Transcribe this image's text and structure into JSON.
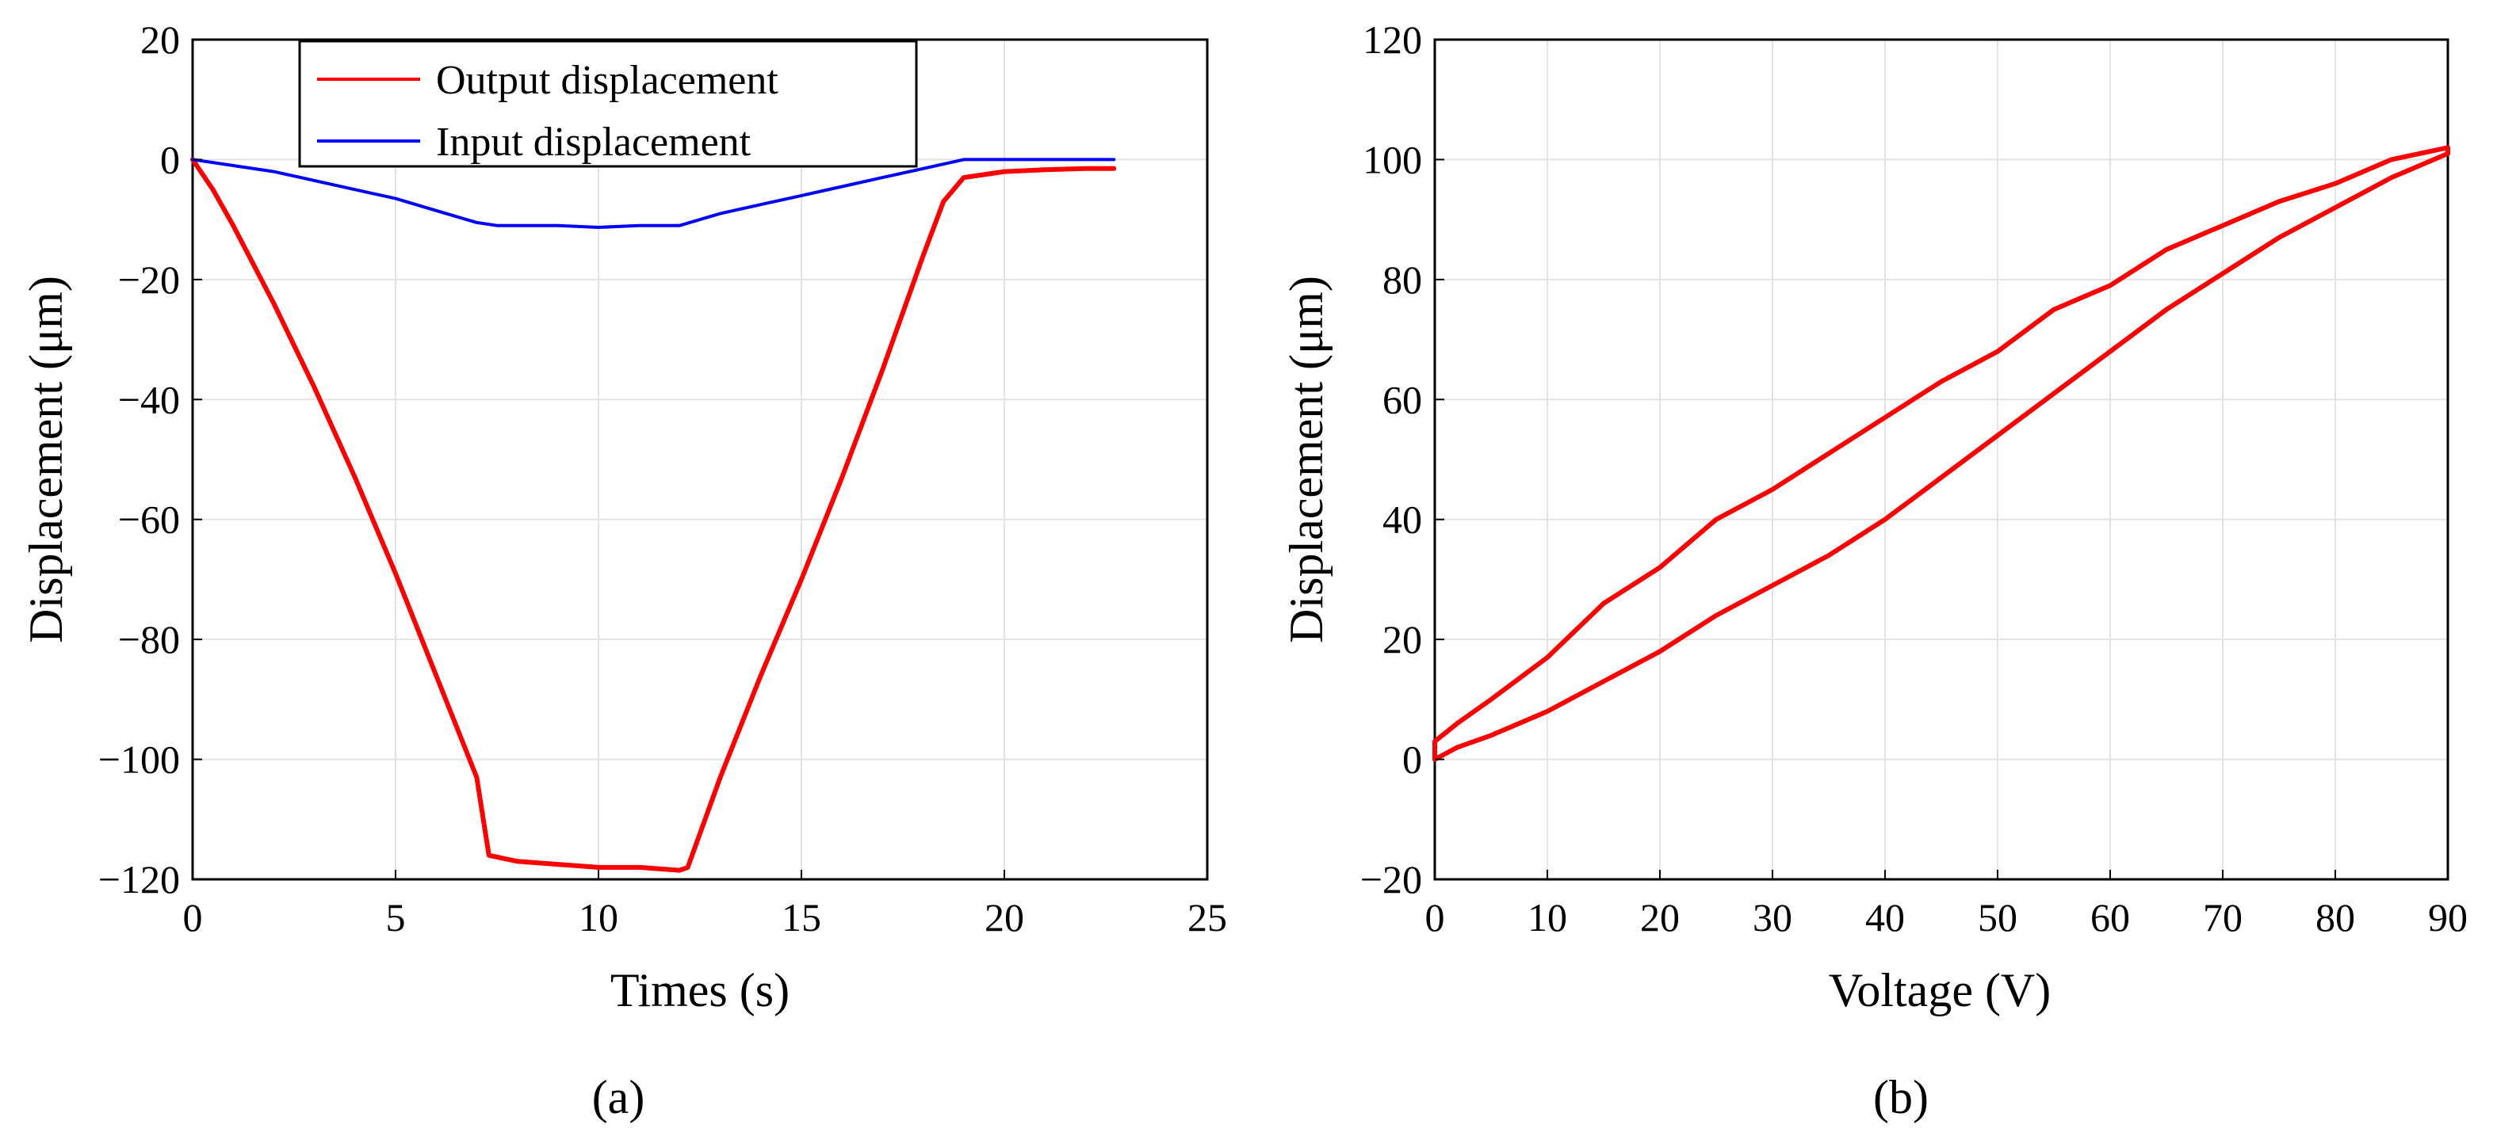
{
  "chart_data": [
    {
      "type": "line",
      "panel_label": "(a)",
      "xlabel": "Times (s)",
      "ylabel": "Displacement (μm)",
      "xlim": [
        0,
        25
      ],
      "ylim": [
        -120,
        20
      ],
      "xticks": [
        0,
        5,
        10,
        15,
        20,
        25
      ],
      "yticks": [
        20,
        0,
        -20,
        -40,
        -60,
        -80,
        -100,
        -120
      ],
      "grid": true,
      "legend_position": "top-left",
      "series": [
        {
          "name": "Output displacement",
          "color": "#ff0000",
          "x": [
            0,
            0.5,
            1,
            2,
            3,
            4,
            5,
            6,
            7,
            7.3,
            8,
            9,
            10,
            11,
            12,
            12.2,
            13,
            14,
            15,
            16,
            17,
            18,
            18.5,
            19,
            19.5,
            20,
            21,
            22,
            22.7
          ],
          "y": [
            0,
            -5,
            -11,
            -24,
            -38,
            -53,
            -69,
            -86,
            -103,
            -116,
            -117,
            -117.5,
            -118,
            -118,
            -118.5,
            -118,
            -103,
            -86,
            -70,
            -53,
            -35,
            -16,
            -7,
            -3,
            -2.5,
            -2,
            -1.7,
            -1.5,
            -1.5
          ]
        },
        {
          "name": "Input displacement",
          "color": "#0000ff",
          "x": [
            0,
            1,
            2,
            3,
            4,
            5,
            6,
            7,
            7.5,
            8,
            9,
            10,
            11,
            12,
            13,
            14,
            15,
            16,
            17,
            18,
            19,
            19.5,
            20,
            21,
            22,
            22.7
          ],
          "y": [
            0,
            -1,
            -2,
            -3.5,
            -5,
            -6.5,
            -8.5,
            -10.5,
            -11,
            -11,
            -11,
            -11.3,
            -11,
            -11,
            -9,
            -7.5,
            -6,
            -4.5,
            -3,
            -1.5,
            0,
            0,
            0,
            0,
            0,
            0
          ]
        }
      ]
    },
    {
      "type": "line",
      "panel_label": "(b)",
      "xlabel": "Voltage (V)",
      "ylabel": "Displacement (μm)",
      "xlim": [
        0,
        90
      ],
      "ylim": [
        -20,
        120
      ],
      "xticks": [
        0,
        10,
        20,
        30,
        40,
        50,
        60,
        70,
        80,
        90
      ],
      "yticks": [
        120,
        100,
        80,
        60,
        40,
        20,
        0,
        -20
      ],
      "grid": true,
      "series": [
        {
          "color": "#ff0000",
          "x": [
            0,
            2,
            5,
            10,
            15,
            20,
            25,
            30,
            32,
            35,
            40,
            45,
            50,
            55,
            60,
            65,
            70,
            75,
            80,
            85,
            90,
            90,
            85,
            80,
            75,
            70,
            65,
            60,
            55,
            50,
            45,
            40,
            35,
            30,
            25,
            20,
            15,
            10,
            5,
            2,
            0,
            0
          ],
          "y": [
            0,
            2,
            4,
            8,
            13,
            18,
            24,
            29,
            31,
            34,
            40,
            47,
            54,
            61,
            68,
            75,
            81,
            87,
            92,
            97,
            101,
            102,
            100,
            96,
            93,
            89,
            85,
            79,
            75,
            68,
            63,
            57,
            51,
            45,
            40,
            32,
            26,
            17,
            10,
            6,
            3,
            0
          ]
        }
      ]
    }
  ]
}
